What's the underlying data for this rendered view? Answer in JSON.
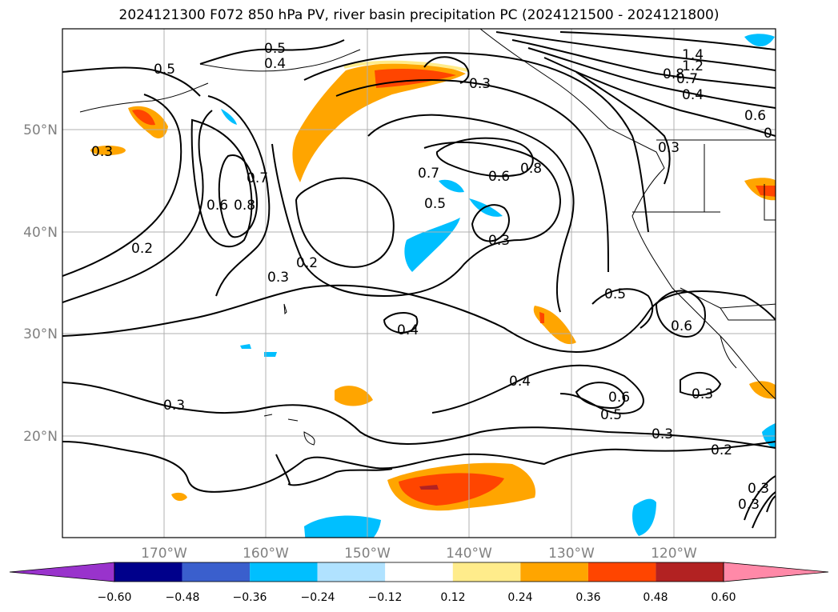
{
  "title": "2024121300 F072 850 hPa PV, river basin precipitation PC (2024121500 - 2024121800)",
  "lon_labels": [
    "170°W",
    "160°W",
    "150°W",
    "140°W",
    "130°W",
    "120°W"
  ],
  "lat_labels": [
    "50°N",
    "40°N",
    "30°N",
    "20°N"
  ],
  "colorbar": {
    "tick_labels": [
      "−0.60",
      "−0.48",
      "−0.36",
      "−0.24",
      "−0.12",
      "0.12",
      "0.24",
      "0.36",
      "0.48",
      "0.60"
    ],
    "colors": [
      "#9933cc",
      "#00008b",
      "#3a5fcd",
      "#00bfff",
      "#b0e2ff",
      "#ffffff",
      "#ffec8b",
      "#ffa500",
      "#ff4500",
      "#b22222",
      "#ff89a8"
    ]
  },
  "contour_labels": [
    "0.5",
    "0.4",
    "0.5",
    "0.3",
    "1.4",
    "1.2",
    "0.8",
    "0.7",
    "0.4",
    "0.6",
    "0",
    "0.3",
    "0.3",
    "0.7",
    "0.6",
    "0.8",
    "0.8",
    "0.7",
    "0.6",
    "0.5",
    "0.3",
    "0.2",
    "0.3",
    "0.2",
    "0.5",
    "0.6",
    "0.4",
    "0.4",
    "0.6",
    "0.5",
    "0.3",
    "0.3",
    "0.3",
    "0.2",
    "0.3",
    "0.3"
  ],
  "colors": {
    "grid": "#b0b0b0",
    "contour": "#000000",
    "coast": "#000000",
    "axis_text": "#808080"
  }
}
